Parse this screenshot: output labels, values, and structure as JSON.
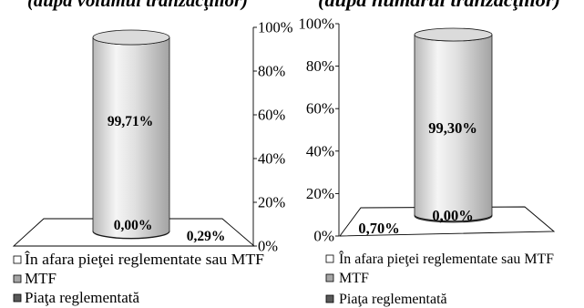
{
  "chart_data": [
    {
      "type": "bar",
      "stacked": true,
      "title": "(după volumul tranzacţiilor)",
      "series": [
        {
          "name": "În afara pieţei reglementate sau MTF",
          "values": [
            99.71
          ],
          "label": "99,71%",
          "color": "#ffffff"
        },
        {
          "name": "MTF",
          "values": [
            0
          ],
          "label": "0,00%",
          "color": "#a6a6a6"
        },
        {
          "name": "Piaţa reglementată",
          "values": [
            0.29
          ],
          "label": "0,29%",
          "color": "#595959"
        }
      ],
      "ylim": [
        0,
        100
      ],
      "yticks": [
        0,
        20,
        40,
        60,
        80,
        100
      ],
      "ytick_labels": [
        "0%",
        "20%",
        "40%",
        "60%",
        "80%",
        "100%"
      ],
      "grid": false,
      "legend": "bottom"
    },
    {
      "type": "bar",
      "stacked": true,
      "title": "(după numărul tranzacţiilor)",
      "series": [
        {
          "name": "În afara pieţei reglementate sau MTF",
          "values": [
            99.3
          ],
          "label": "99,30%",
          "color": "#ffffff"
        },
        {
          "name": "MTF",
          "values": [
            0
          ],
          "label": "0,00%",
          "color": "#a6a6a6"
        },
        {
          "name": "Piaţa reglementată",
          "values": [
            0.7
          ],
          "label": "0,70%",
          "color": "#595959"
        }
      ],
      "ylim": [
        0,
        100
      ],
      "yticks": [
        0,
        20,
        40,
        60,
        80,
        100
      ],
      "ytick_labels": [
        "0%",
        "20%",
        "40%",
        "60%",
        "80%",
        "100%"
      ],
      "grid": false,
      "legend": "bottom"
    }
  ]
}
